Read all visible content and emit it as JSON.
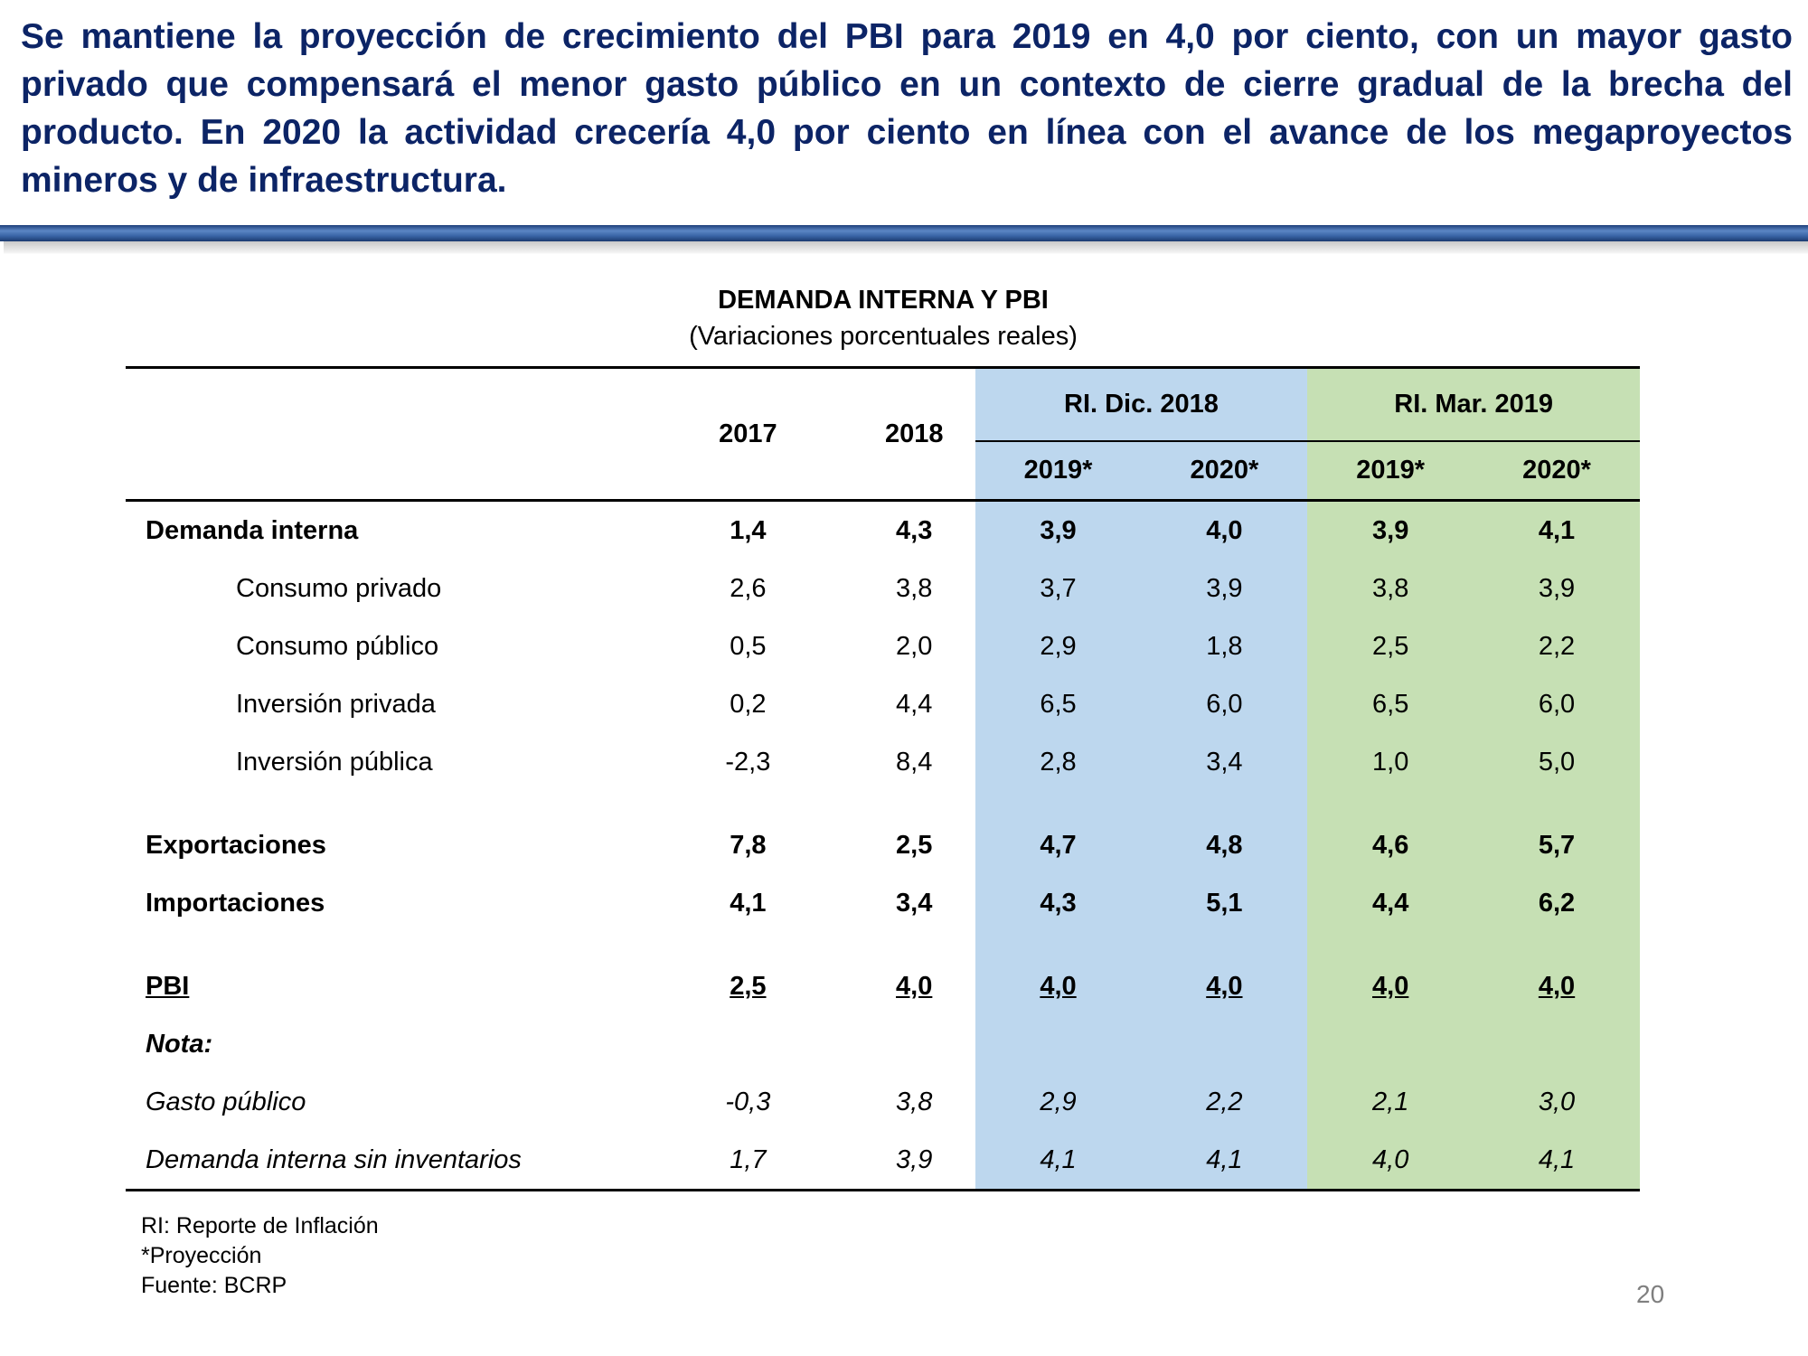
{
  "headline": "Se mantiene la proyección de crecimiento del PBI para 2019 en 4,0 por ciento, con un mayor gasto privado que compensará el menor gasto público en un contexto de cierre gradual de la brecha del producto. En 2020 la actividad crecería 4,0 por ciento en línea con el avance de los megaproyectos mineros y de infraestructura.",
  "table": {
    "title": "DEMANDA INTERNA Y PBI",
    "subtitle": "(Variaciones porcentuales reales)",
    "headers": {
      "y2017": "2017",
      "y2018": "2018",
      "group_dic": "RI. Dic. 2018",
      "group_mar": "RI. Mar. 2019",
      "sub": [
        "2019*",
        "2020*",
        "2019*",
        "2020*"
      ]
    },
    "colors": {
      "dic": "#bdd7ee",
      "mar": "#c6e0b4"
    },
    "rows": [
      {
        "label": "Demanda interna",
        "style": "b",
        "values": [
          "1,4",
          "4,3",
          "3,9",
          "4,0",
          "3,9",
          "4,1"
        ]
      },
      {
        "label": "Consumo privado",
        "style": "ind",
        "values": [
          "2,6",
          "3,8",
          "3,7",
          "3,9",
          "3,8",
          "3,9"
        ]
      },
      {
        "label": "Consumo público",
        "style": "ind",
        "values": [
          "0,5",
          "2,0",
          "2,9",
          "1,8",
          "2,5",
          "2,2"
        ]
      },
      {
        "label": "Inversión privada",
        "style": "ind",
        "values": [
          "0,2",
          "4,4",
          "6,5",
          "6,0",
          "6,5",
          "6,0"
        ]
      },
      {
        "label": "Inversión pública",
        "style": "ind",
        "values": [
          "-2,3",
          "8,4",
          "2,8",
          "3,4",
          "1,0",
          "5,0"
        ]
      },
      {
        "label": "Exportaciones",
        "style": "b",
        "spacer": true,
        "values": [
          "7,8",
          "2,5",
          "4,7",
          "4,8",
          "4,6",
          "5,7"
        ]
      },
      {
        "label": "Importaciones",
        "style": "b",
        "values": [
          "4,1",
          "3,4",
          "4,3",
          "5,1",
          "4,4",
          "6,2"
        ]
      },
      {
        "label": "PBI",
        "style": "b u",
        "spacer": true,
        "values": [
          "2,5",
          "4,0",
          "4,0",
          "4,0",
          "4,0",
          "4,0"
        ]
      },
      {
        "label": "Nota:",
        "style": "b i",
        "values": [
          "",
          "",
          "",
          "",
          "",
          ""
        ]
      },
      {
        "label": "Gasto público",
        "style": "i",
        "values": [
          "-0,3",
          "3,8",
          "2,9",
          "2,2",
          "2,1",
          "3,0"
        ]
      },
      {
        "label": "Demanda interna sin inventarios",
        "style": "i",
        "values": [
          "1,7",
          "3,9",
          "4,1",
          "4,1",
          "4,0",
          "4,1"
        ]
      }
    ]
  },
  "notes": [
    "RI: Reporte de Inflación",
    "*Proyección",
    "Fuente: BCRP"
  ],
  "page_number": "20"
}
